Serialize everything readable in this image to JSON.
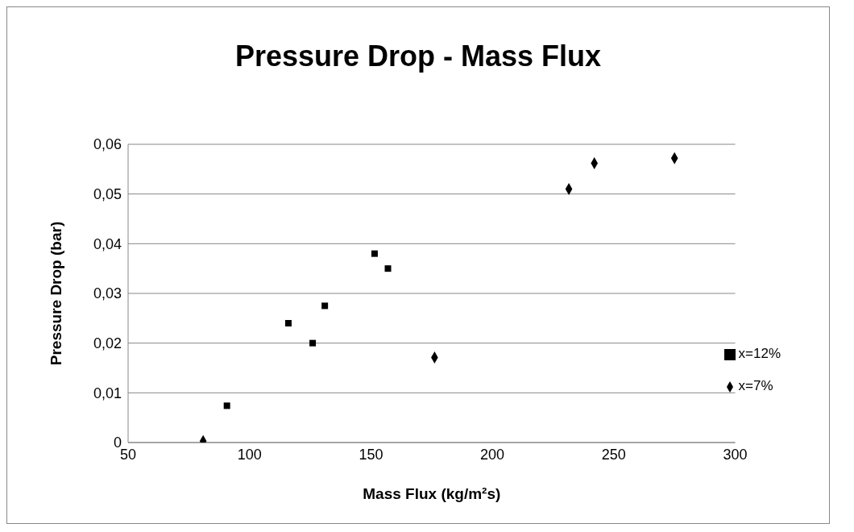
{
  "chart_data": {
    "type": "scatter",
    "title": "Pressure Drop - Mass Flux",
    "xlabel": "Mass Flux (kg/m²s)",
    "ylabel": "Pressure Drop (bar)",
    "xlim": [
      50,
      300
    ],
    "xticks": [
      50,
      100,
      150,
      200,
      250,
      300
    ],
    "ylim": [
      0,
      0.06
    ],
    "yticks": [
      {
        "value": 0,
        "label": "0"
      },
      {
        "value": 0.01,
        "label": "0,01"
      },
      {
        "value": 0.02,
        "label": "0,02"
      },
      {
        "value": 0.03,
        "label": "0,03"
      },
      {
        "value": 0.04,
        "label": "0,04"
      },
      {
        "value": 0.05,
        "label": "0,05"
      },
      {
        "value": 0.06,
        "label": "0,06"
      }
    ],
    "grid": "y",
    "legend": "right",
    "series": [
      {
        "name": "x=7%",
        "color": "#000000",
        "marker": "diamond",
        "x": [
          80.9,
          176.2,
          231.5,
          242,
          275
        ],
        "values": [
          0.0003,
          0.0171,
          0.051,
          0.0562,
          0.0572
        ]
      },
      {
        "name": "x=12%",
        "color": "#000000",
        "marker": "square",
        "x": [
          90.7,
          116,
          126,
          131,
          151.5,
          157
        ],
        "values": [
          0.0074,
          0.024,
          0.02,
          0.0275,
          0.038,
          0.035
        ]
      }
    ]
  }
}
